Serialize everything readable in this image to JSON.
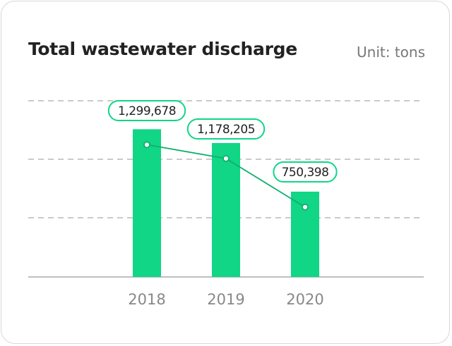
{
  "title": "Total wastewater discharge",
  "unit": "Unit: tons",
  "chart_data": {
    "type": "bar",
    "title": "Total wastewater discharge",
    "unit": "Unit: tons",
    "categories": [
      "2018",
      "2019",
      "2020"
    ],
    "values": [
      1299678,
      1178205,
      750398
    ],
    "value_labels": [
      "1,299,678",
      "1,178,205",
      "750,398"
    ],
    "line_overlay": true,
    "ylim": [
      0,
      1550000
    ],
    "grid": true,
    "colors": {
      "bar": "#10d686",
      "line": "#0fb06e",
      "label_border": "#10d686",
      "grid": "#b8b8b8"
    }
  }
}
